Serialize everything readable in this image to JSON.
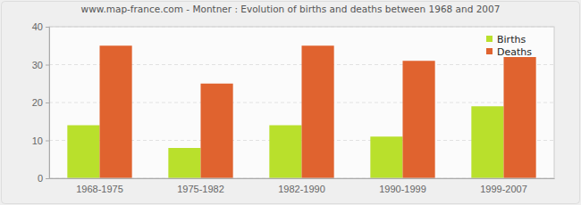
{
  "chart_data": {
    "type": "bar",
    "title": "www.map-france.com - Montner : Evolution of births and deaths between 1968 and 2007",
    "categories": [
      "1968-1975",
      "1975-1982",
      "1982-1990",
      "1990-1999",
      "1999-2007"
    ],
    "series": [
      {
        "name": "Births",
        "color": "#b9e02c",
        "values": [
          14,
          8,
          14,
          11,
          19
        ]
      },
      {
        "name": "Deaths",
        "color": "#e0632f",
        "values": [
          35,
          25,
          35,
          31,
          32
        ]
      }
    ],
    "ylim": [
      0,
      40
    ],
    "yticks": [
      0,
      10,
      20,
      30,
      40
    ],
    "grid": true,
    "legend": "top-right"
  }
}
